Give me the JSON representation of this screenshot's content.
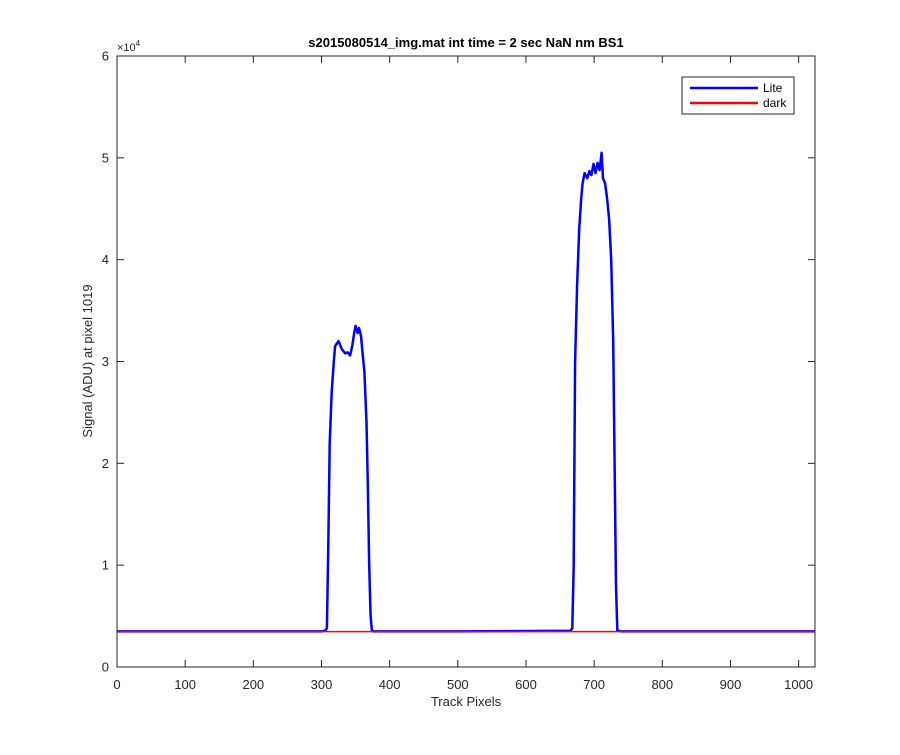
{
  "chart_data": {
    "type": "line",
    "title": "s2015080514_img.mat int time = 2 sec  NaN nm BS1",
    "xlabel": "Track Pixels",
    "ylabel": "Signal (ADU) at pixel 1019",
    "xlim": [
      0,
      1024
    ],
    "ylim": [
      0,
      60000
    ],
    "x_ticks": [
      0,
      100,
      200,
      300,
      400,
      500,
      600,
      700,
      800,
      900,
      1000
    ],
    "x_tick_labels": [
      "0",
      "100",
      "200",
      "300",
      "400",
      "500",
      "600",
      "700",
      "800",
      "900",
      "1000"
    ],
    "y_ticks": [
      0,
      10000,
      20000,
      30000,
      40000,
      50000,
      60000
    ],
    "y_tick_labels": [
      "0",
      "1",
      "2",
      "3",
      "4",
      "5",
      "6"
    ],
    "y_exponent_label": "×10",
    "y_exponent_power": "4",
    "grid": false,
    "legend_placement": "top-right",
    "series": [
      {
        "name": "Lite",
        "color": "#0000ff",
        "x": [
          0,
          300,
          305,
          308,
          310,
          312,
          315,
          318,
          320,
          325,
          330,
          335,
          338,
          342,
          345,
          348,
          350,
          353,
          355,
          358,
          360,
          363,
          366,
          368,
          370,
          372,
          374,
          376,
          380,
          500,
          665,
          668,
          670,
          672,
          675,
          678,
          681,
          683,
          686,
          690,
          693,
          696,
          699,
          702,
          705,
          708,
          711,
          713,
          716,
          719,
          722,
          725,
          728,
          730,
          732,
          734,
          740,
          1024
        ],
        "y": [
          3500,
          3500,
          3550,
          3800,
          12000,
          22000,
          27000,
          30000,
          31500,
          32000,
          31200,
          30800,
          30900,
          30600,
          31500,
          32800,
          33500,
          32800,
          33300,
          32500,
          31000,
          29000,
          24000,
          18000,
          10000,
          5000,
          3600,
          3500,
          3500,
          3500,
          3550,
          3800,
          10000,
          30000,
          37500,
          43000,
          46000,
          47500,
          48500,
          48000,
          48700,
          48300,
          49400,
          48500,
          49500,
          48800,
          50500,
          48000,
          47500,
          46000,
          44000,
          40000,
          32000,
          20000,
          8000,
          3600,
          3500,
          3500
        ]
      },
      {
        "name": "dark",
        "color": "#ff0000",
        "x": [
          0,
          1024
        ],
        "y": [
          3480,
          3480
        ]
      }
    ]
  }
}
